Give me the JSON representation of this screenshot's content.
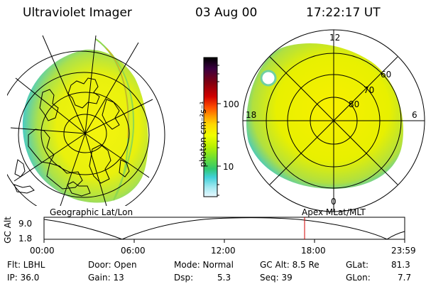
{
  "header": {
    "title": "Ultraviolet Imager",
    "date": "03 Aug 00",
    "time": "17:22:17 UT"
  },
  "colorbar": {
    "unit_label": "photon cm⁻²s⁻¹",
    "ticks": [
      "100",
      "10"
    ],
    "colors": [
      "#000000",
      "#3a0040",
      "#800010",
      "#d00000",
      "#ff5000",
      "#ff9a00",
      "#ffd800",
      "#f0ff00",
      "#b8f000",
      "#70e030",
      "#30c870",
      "#40d0d8",
      "#a0e8f0",
      "#e8f8ff"
    ]
  },
  "left_map": {
    "caption": "Geographic Lat/Lon"
  },
  "right_map": {
    "caption": "Apex MLat/MLT",
    "mlt_labels": {
      "top": "12",
      "left": "18",
      "right": "6",
      "bottom": "0"
    },
    "mlat_labels": [
      "60",
      "70",
      "80"
    ]
  },
  "gc_plot": {
    "ylabel": "GC Alt",
    "yticks": [
      "9.0",
      "1.8"
    ],
    "xticks": [
      "00:00",
      "06:00",
      "12:00",
      "18:00",
      "23:59"
    ],
    "marker_time": "17:22"
  },
  "info": {
    "flt": "Flt: LBHL",
    "ip": "IP: 36.0",
    "door": "Door: Open",
    "gain": "Gain: 13",
    "mode": "Mode: Normal",
    "dsp_label": "Dsp:",
    "dsp_value": "5.3",
    "gcalt": "GC Alt: 8.5 Re",
    "seq": "Seq: 39",
    "glat_label": "GLat:",
    "glat_value": "81.3",
    "glon_label": "GLon:",
    "glon_value": "7.7"
  }
}
